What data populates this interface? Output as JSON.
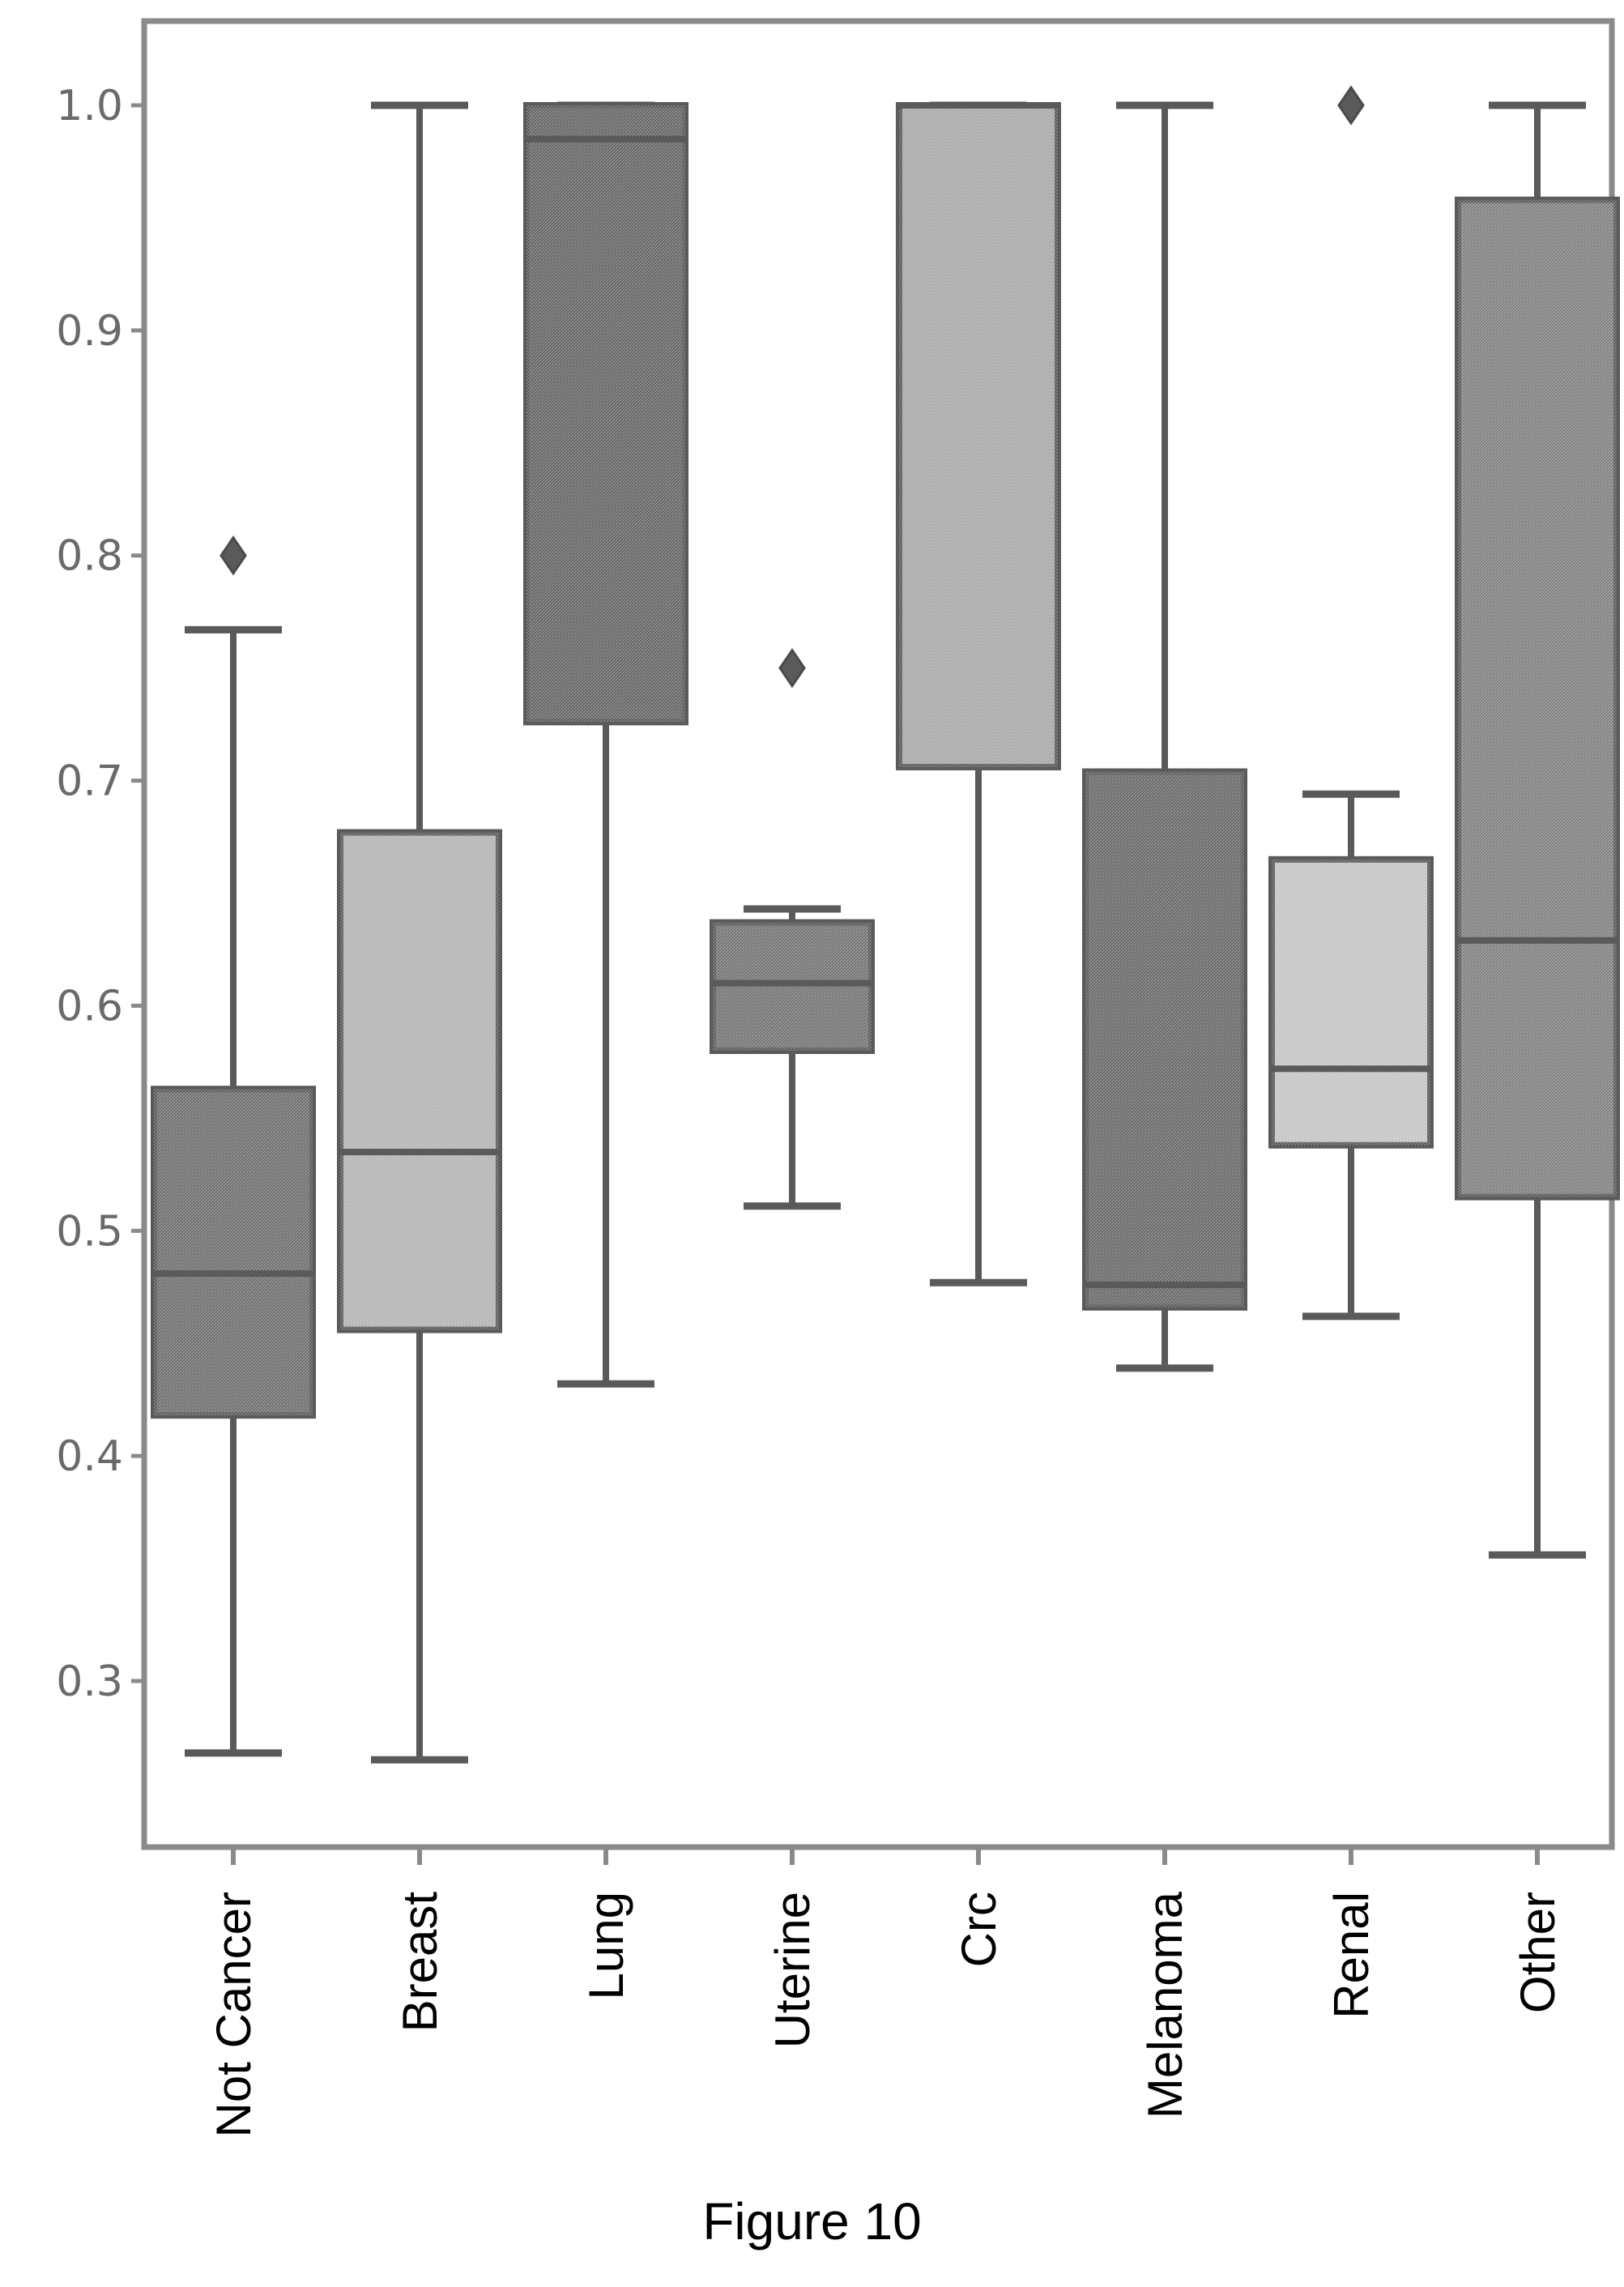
{
  "caption": "Figure 10",
  "chart_data": {
    "type": "box",
    "categories": [
      "Not Cancer",
      "Breast",
      "Lung",
      "Uterine",
      "Crc",
      "Melanoma",
      "Renal",
      "Other"
    ],
    "yticks": [
      "0.3",
      "0.4",
      "0.5",
      "0.6",
      "0.7",
      "0.8",
      "0.9",
      "1.0"
    ],
    "ylim": [
      0.22,
      1.04
    ],
    "grid": false,
    "boxes": [
      {
        "category": "Not Cancer",
        "whisker_low": 0.268,
        "q1": 0.418,
        "median": 0.481,
        "q3": 0.563,
        "whisker_high": 0.767,
        "outliers": [
          0.8
        ],
        "color": "#6f6f6f"
      },
      {
        "category": "Breast",
        "whisker_low": 0.265,
        "q1": 0.456,
        "median": 0.535,
        "q3": 0.677,
        "whisker_high": 1.0,
        "outliers": [],
        "color": "#b3b3b3"
      },
      {
        "category": "Lung",
        "whisker_low": 0.432,
        "q1": 0.726,
        "median": 0.985,
        "q3": 1.0,
        "whisker_high": 1.0,
        "outliers": [],
        "color": "#666666"
      },
      {
        "category": "Uterine",
        "whisker_low": 0.511,
        "q1": 0.58,
        "median": 0.61,
        "q3": 0.637,
        "whisker_high": 0.643,
        "outliers": [
          0.75
        ],
        "color": "#747474"
      },
      {
        "category": "Crc",
        "whisker_low": 0.477,
        "q1": 0.706,
        "median": 1.0,
        "q3": 1.0,
        "whisker_high": 1.0,
        "outliers": [],
        "color": "#a8a8a8"
      },
      {
        "category": "Melanoma",
        "whisker_low": 0.439,
        "q1": 0.466,
        "median": 0.476,
        "q3": 0.704,
        "whisker_high": 1.0,
        "outliers": [],
        "color": "#6a6a6a"
      },
      {
        "category": "Renal",
        "whisker_low": 0.462,
        "q1": 0.538,
        "median": 0.572,
        "q3": 0.665,
        "whisker_high": 0.694,
        "outliers": [
          1.0
        ],
        "color": "#c4c4c4"
      },
      {
        "category": "Other",
        "whisker_low": 0.356,
        "q1": 0.515,
        "median": 0.629,
        "q3": 0.958,
        "whisker_high": 1.0,
        "outliers": [],
        "color": "#808080"
      }
    ]
  }
}
